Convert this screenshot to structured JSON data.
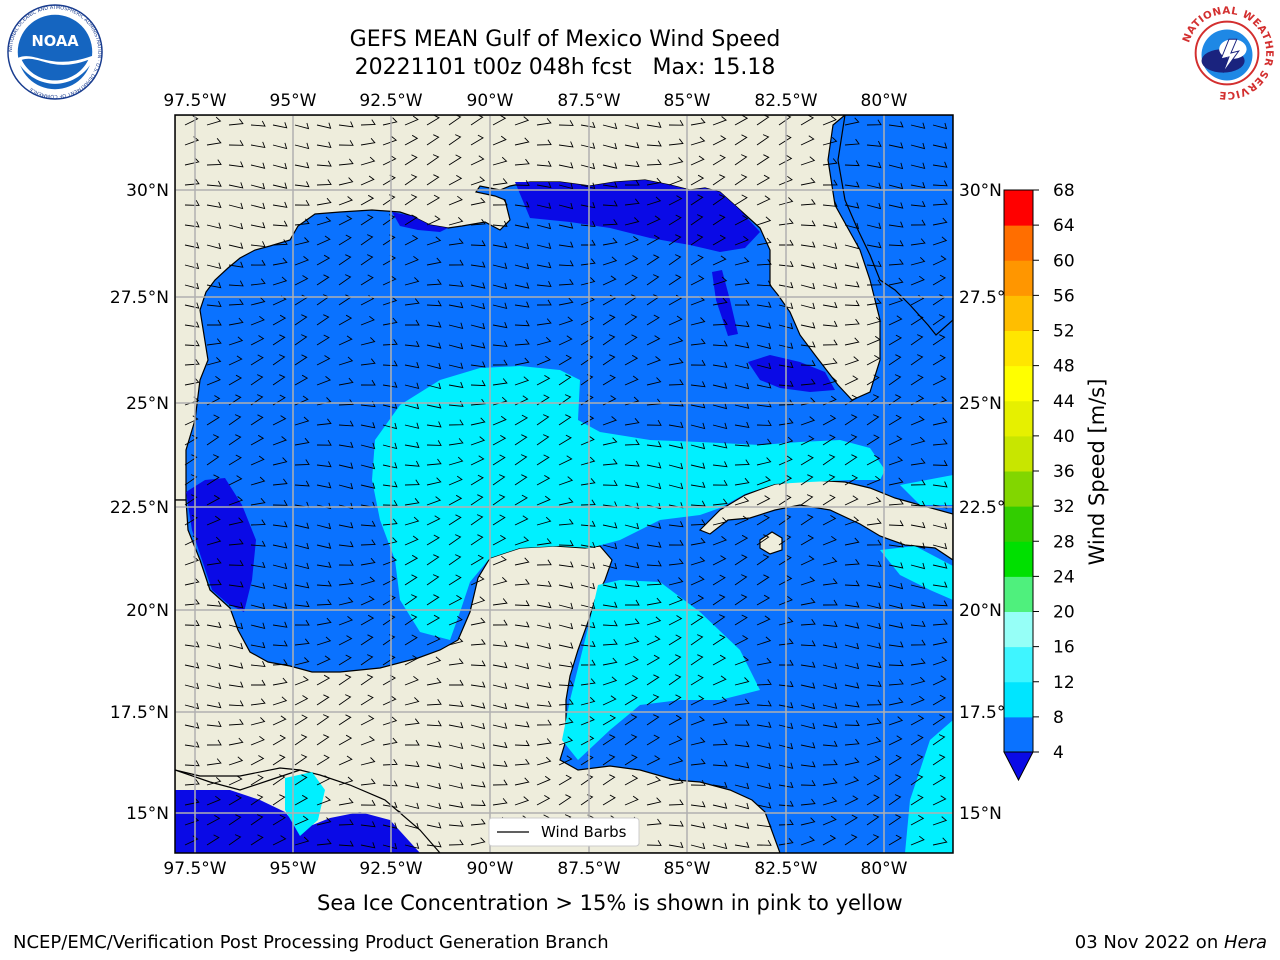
{
  "header": {
    "title_line1": "GEFS MEAN Gulf of Mexico Wind Speed",
    "title_line2": "20221101 t00z 048h fcst   Max: 15.18"
  },
  "logos": {
    "left": {
      "text": "NOAA",
      "ring_text": "NATIONAL OCEANIC AND ATMOSPHERIC ADMINISTRATION · U.S. DEPARTMENT OF COMMERCE"
    },
    "right": {
      "ring_text": "NATIONAL WEATHER SERVICE"
    }
  },
  "map": {
    "lon_ticks": [
      "97.5°W",
      "95°W",
      "92.5°W",
      "90°W",
      "87.5°W",
      "85°W",
      "82.5°W",
      "80°W"
    ],
    "lat_ticks": [
      "30°N",
      "27.5°N",
      "25°N",
      "22.5°N",
      "20°N",
      "17.5°N",
      "15°N"
    ],
    "lon_range": [
      -98,
      -78
    ],
    "lat_range": [
      14,
      31.7
    ],
    "legend_label": "Wind Barbs",
    "colors": {
      "land": "#eeeddc",
      "ocean_4_8": "#0a72ff",
      "ocean_lt4": "#0a0ae6",
      "ocean_8_12": "#00f0ff"
    }
  },
  "colorbar": {
    "title": "Wind Speed [m/s]",
    "tick_labels": [
      "4",
      "8",
      "12",
      "16",
      "20",
      "24",
      "28",
      "32",
      "36",
      "40",
      "44",
      "48",
      "52",
      "56",
      "60",
      "64",
      "68"
    ],
    "colors": [
      "#0a72ff",
      "#00e5ff",
      "#3ff5ff",
      "#96fff7",
      "#4ff07d",
      "#00e000",
      "#32cd00",
      "#82d600",
      "#c8e600",
      "#e6f000",
      "#ffff00",
      "#ffe600",
      "#ffbe00",
      "#ff9600",
      "#ff6e00",
      "#ff3c00",
      "#ff0000"
    ],
    "under_color": "#0a0ae6"
  },
  "footer": {
    "note": "Sea Ice Concentration > 15% is shown in pink to yellow",
    "credit_left": "NCEP/EMC/Verification Post Processing Product Generation Branch",
    "credit_right_date": "03 Nov 2022 on ",
    "credit_right_host": "Hera"
  }
}
